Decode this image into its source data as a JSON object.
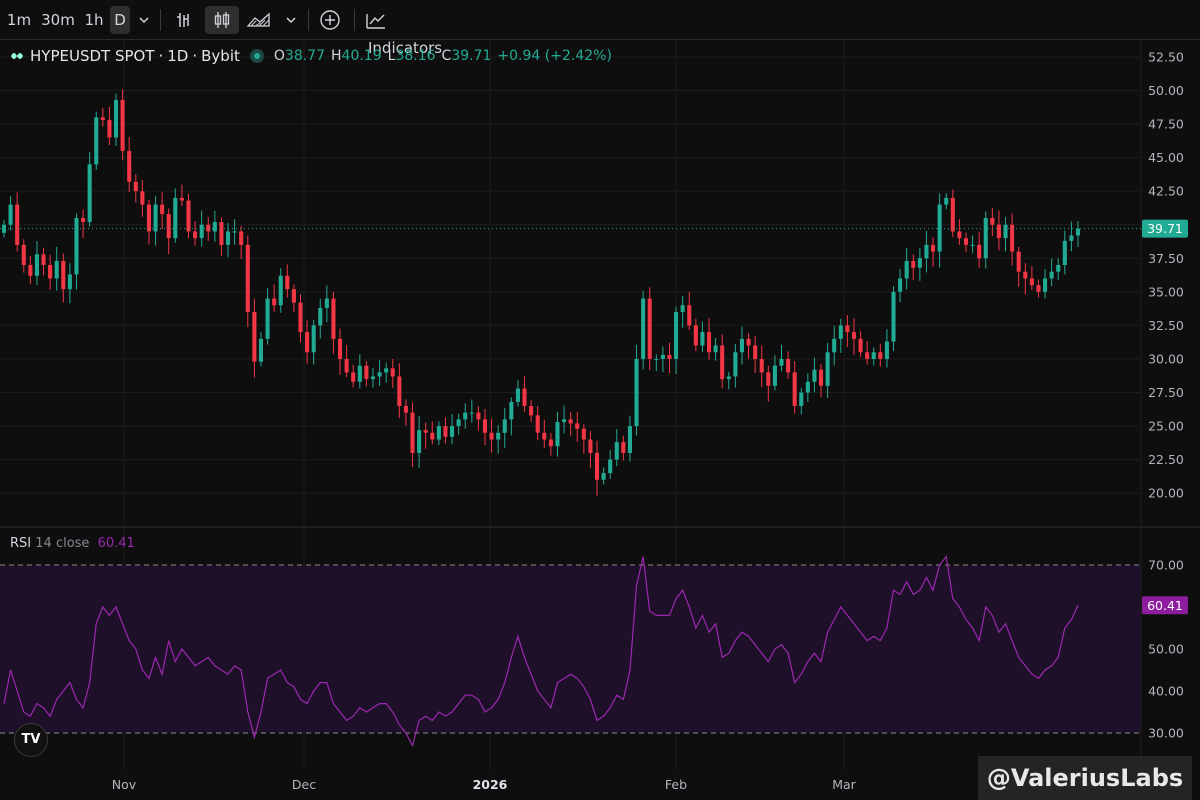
{
  "toolbar": {
    "intervals": [
      "1m",
      "30m",
      "1h",
      "D"
    ],
    "active_interval": "D",
    "indicators_label": "Indicators"
  },
  "legend": {
    "symbol": "HYPEUSDT SPOT",
    "timeframe": "1D",
    "exchange": "Bybit",
    "open_label": "O",
    "open": "38.77",
    "high_label": "H",
    "high": "40.19",
    "low_label": "L",
    "low": "38.16",
    "close_label": "C",
    "close": "39.71",
    "change": "+0.94 (+2.42%)"
  },
  "rsi": {
    "name": "RSI",
    "params": "14 close",
    "value": "60.41"
  },
  "watermark": "@ValeriusLabs",
  "colors": {
    "up": "#22ab94",
    "down": "#f23645",
    "rsi_line": "#9c27b0",
    "rsi_band": "#1f1029",
    "price_badge": "#22ab94",
    "rsi_badge": "#8e1c9e"
  },
  "chart_data": [
    {
      "type": "candlestick",
      "y_ticks": [
        "52.50",
        "50.00",
        "47.50",
        "45.00",
        "42.50",
        "40.00",
        "37.50",
        "35.00",
        "32.50",
        "30.00",
        "27.50",
        "25.00",
        "22.50",
        "20.00"
      ],
      "ylim": [
        18.0,
        53.5
      ],
      "x_labels": [
        "Nov",
        "Dec",
        "2026",
        "Feb",
        "Mar"
      ],
      "last_price": "39.71",
      "close": [
        40.0,
        41.5,
        38.5,
        37.0,
        36.2,
        37.8,
        37.0,
        36.0,
        37.3,
        35.2,
        36.3,
        40.5,
        40.2,
        44.5,
        48.0,
        47.8,
        46.5,
        49.3,
        45.5,
        43.2,
        42.5,
        41.5,
        39.5,
        41.5,
        40.8,
        39.0,
        42.0,
        41.8,
        39.5,
        39.0,
        40.0,
        39.5,
        40.2,
        38.5,
        39.5,
        39.5,
        38.5,
        33.5,
        29.8,
        31.5,
        34.5,
        34.0,
        36.2,
        35.2,
        34.2,
        32.0,
        30.5,
        32.5,
        33.8,
        34.5,
        31.5,
        30.0,
        29.0,
        28.3,
        29.5,
        28.5,
        28.7,
        29.0,
        29.3,
        28.7,
        26.5,
        26.0,
        23.0,
        24.7,
        24.5,
        24.0,
        25.0,
        24.2,
        25.0,
        25.5,
        26.0,
        26.0,
        25.5,
        24.5,
        24.0,
        24.5,
        25.5,
        26.8,
        27.8,
        26.5,
        25.8,
        24.5,
        24.0,
        23.5,
        25.3,
        25.5,
        25.2,
        24.8,
        24.0,
        23.0,
        21.0,
        21.5,
        22.5,
        23.8,
        23.0,
        25.0,
        30.0,
        34.5,
        30.0,
        30.0,
        30.3,
        30.0,
        33.5,
        34.0,
        32.5,
        31.0,
        32.0,
        30.5,
        31.0,
        28.5,
        28.7,
        30.5,
        31.5,
        31.0,
        30.0,
        29.0,
        28.0,
        29.5,
        30.0,
        29.0,
        26.5,
        27.5,
        28.3,
        29.2,
        28.0,
        30.5,
        31.5,
        32.5,
        32.0,
        31.5,
        30.5,
        30.0,
        30.5,
        30.0,
        31.3,
        35.0,
        36.0,
        37.3,
        36.8,
        37.5,
        38.5,
        38.0,
        41.5,
        42.0,
        39.5,
        39.0,
        38.5,
        38.5,
        37.5,
        40.5,
        40.0,
        39.0,
        40.0,
        38.0,
        36.5,
        36.0,
        35.5,
        35.0,
        36.0,
        36.5,
        37.0,
        38.8,
        39.2,
        39.71
      ],
      "rsi": [
        37,
        45,
        40,
        35,
        34,
        37,
        36,
        34,
        38,
        40,
        42,
        38,
        36,
        42,
        56,
        60,
        58,
        60,
        56,
        52,
        50,
        45,
        43,
        48,
        44,
        52,
        47,
        50,
        48,
        46,
        47,
        48,
        46,
        45,
        44,
        46,
        45,
        35,
        29,
        35,
        43,
        44,
        45,
        42,
        41,
        38,
        37,
        40,
        42,
        42,
        37,
        35,
        33,
        34,
        36,
        35,
        36,
        37,
        37,
        35,
        32,
        30,
        27,
        33,
        34,
        33,
        35,
        34,
        35,
        37,
        39,
        39,
        38,
        35,
        36,
        38,
        42,
        48,
        53,
        48,
        44,
        40,
        38,
        36,
        42,
        43,
        44,
        43,
        41,
        38,
        33,
        34,
        36,
        39,
        38,
        45,
        65,
        72,
        59,
        58,
        58,
        58,
        62,
        64,
        60,
        55,
        58,
        54,
        56,
        48,
        49,
        52,
        54,
        53,
        51,
        49,
        47,
        50,
        51,
        49,
        42,
        44,
        47,
        49,
        47,
        54,
        57,
        60,
        58,
        56,
        54,
        52,
        53,
        52,
        55,
        64,
        63,
        66,
        63,
        64,
        67,
        64,
        70,
        72,
        62,
        60,
        57,
        55,
        52,
        60,
        58,
        54,
        56,
        52,
        48,
        46,
        44,
        43,
        45,
        46,
        48,
        55,
        57,
        60.41
      ]
    }
  ]
}
